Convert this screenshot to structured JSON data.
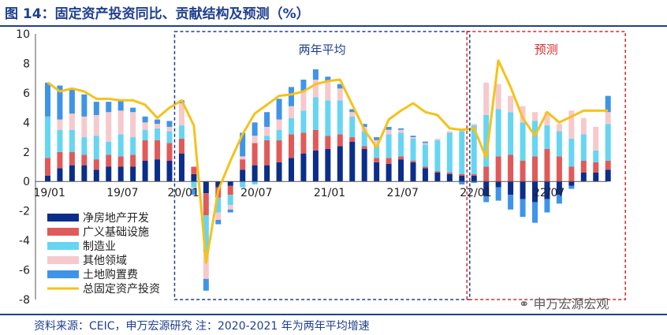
{
  "title": "图 14：固定资产投资同比、贡献结构及预测（%）",
  "footer": "资料来源：CEIC，申万宏源研究    注：2020-2021 年为两年平均增速",
  "watermark": "申万宏源宏观",
  "colors": {
    "title": "#1f3f8f",
    "real_estate": "#0b2e8a",
    "infrastructure": "#e05a5a",
    "manufacturing": "#66d5f2",
    "other": "#f6c9cc",
    "land": "#3f94e8",
    "total": "#f5c21b",
    "box_avg": "#1f3f8f",
    "box_forecast": "#d22c2c"
  },
  "chart_data": {
    "type": "bar",
    "stacked": true,
    "title": "图 14：固定资产投资同比、贡献结构及预测（%）",
    "ylim": [
      -8,
      10
    ],
    "yticks": [
      "10",
      "8",
      "6",
      "4",
      "2",
      "0",
      "-2",
      "-4",
      "-6",
      "-8"
    ],
    "xtick_labels": [
      {
        "label": "19/01",
        "index": 0
      },
      {
        "label": "19/07",
        "index": 6
      },
      {
        "label": "20/01",
        "index": 11
      },
      {
        "label": "20/07",
        "index": 17
      },
      {
        "label": "21/01",
        "index": 23
      },
      {
        "label": "21/07",
        "index": 29
      },
      {
        "label": "22/01",
        "index": 35
      },
      {
        "label": "22/07",
        "index": 41
      }
    ],
    "categories": [
      "19/01",
      "19/02",
      "19/03",
      "19/04",
      "19/05",
      "19/06",
      "19/07",
      "19/08",
      "19/09",
      "19/10",
      "19/11",
      "19/12",
      "20/02",
      "20/03",
      "20/04",
      "20/05",
      "20/06",
      "20/07",
      "20/08",
      "20/09",
      "20/10",
      "20/11",
      "20/12",
      "21/01",
      "21/02",
      "21/03",
      "21/04",
      "21/05",
      "21/06",
      "21/07",
      "21/08",
      "21/09",
      "21/10",
      "21/11",
      "21/12",
      "22/01",
      "22/02",
      "22/03",
      "22/04",
      "22/05",
      "22/06",
      "22/07",
      "22/08",
      "22/09",
      "22/10",
      "22/11",
      "22/12"
    ],
    "series": [
      {
        "name": "净房地产开发",
        "values": [
          0.4,
          0.9,
          1.1,
          1.1,
          0.8,
          1.0,
          1.0,
          1.0,
          1.4,
          1.5,
          1.4,
          1.9,
          0.5,
          -0.8,
          -0.4,
          -0.3,
          0.8,
          1.1,
          1.1,
          1.3,
          1.6,
          1.9,
          2.1,
          2.2,
          2.4,
          2.7,
          2.2,
          1.3,
          1.2,
          1.5,
          1.3,
          0.9,
          0.6,
          0.5,
          0.4,
          0.4,
          -1.0,
          -0.4,
          -0.9,
          -1.2,
          -1.4,
          -1.2,
          -0.9,
          -0.3,
          0.6,
          0.6,
          0.8
        ]
      },
      {
        "name": "广义基础设施",
        "values": [
          1.2,
          1.1,
          0.9,
          0.7,
          0.7,
          0.8,
          0.7,
          0.8,
          1.4,
          1.3,
          1.2,
          1.0,
          0.5,
          -1.5,
          -0.7,
          -0.6,
          0.7,
          1.5,
          1.7,
          1.5,
          1.6,
          1.4,
          1.4,
          0.9,
          0.8,
          0.3,
          0.2,
          0.3,
          0.4,
          0.2,
          0.1,
          0.1,
          0.1,
          0.1,
          0.1,
          0.1,
          1.0,
          1.7,
          1.8,
          1.4,
          1.7,
          2.2,
          1.7,
          1.0,
          0.8,
          0.7,
          0.6
        ]
      },
      {
        "name": "制造业",
        "values": [
          2.8,
          1.5,
          1.5,
          1.2,
          1.6,
          0.9,
          1.5,
          1.2,
          0.7,
          0.8,
          0.8,
          0.9,
          -0.4,
          -2.5,
          -1.0,
          -0.7,
          -0.4,
          -0.2,
          0.3,
          0.7,
          1.1,
          1.5,
          2.2,
          2.4,
          2.3,
          1.4,
          1.0,
          0.9,
          1.6,
          1.6,
          1.5,
          1.5,
          2.1,
          2.7,
          2.9,
          3.3,
          3.5,
          3.2,
          2.9,
          2.6,
          2.4,
          1.6,
          1.7,
          1.9,
          1.8,
          0.8,
          2.5
        ]
      },
      {
        "name": "其他领域",
        "values": [
          0,
          0.7,
          1.1,
          1.4,
          1.4,
          2.0,
          1.6,
          1.7,
          0.5,
          0.3,
          0.3,
          1.5,
          -0.1,
          -1.8,
          -0.5,
          -0.3,
          0.2,
          0.5,
          0.6,
          0.7,
          0.8,
          1.3,
          1.2,
          1.3,
          0.8,
          0.3,
          0.3,
          0.3,
          0.3,
          0.2,
          0.1,
          0.1,
          0.1,
          0.1,
          0.2,
          0.1,
          2.2,
          1.7,
          1.1,
          1.1,
          0.6,
          0.9,
          0.5,
          1.9,
          1.1,
          1.6,
          0.8
        ]
      },
      {
        "name": "土地购置费",
        "values": [
          2.3,
          2.3,
          1.7,
          1.5,
          0.9,
          0.7,
          0.7,
          0.3,
          0.4,
          0.3,
          0.4,
          0.2,
          -0.4,
          -0.8,
          -0.3,
          -0.2,
          1.6,
          0.9,
          1.0,
          1.4,
          1.3,
          0.8,
          0.7,
          0.3,
          0.3,
          0.2,
          0.2,
          0.2,
          0.2,
          0.1,
          0.1,
          0.1,
          0,
          0,
          -0.2,
          -0.1,
          -0.4,
          -0.9,
          -1.0,
          -1.2,
          -1.4,
          -0.9,
          -0.6,
          -0.2,
          0,
          0,
          1.1
        ]
      },
      {
        "name": "总固定资产投资",
        "type": "line",
        "values": [
          6.7,
          6.1,
          6.3,
          6.1,
          5.6,
          5.6,
          5.5,
          5.5,
          5.2,
          4.3,
          5.0,
          5.5,
          3.8,
          -5.5,
          -0.6,
          1.4,
          3.2,
          4.6,
          5.2,
          5.8,
          5.9,
          6.1,
          6.6,
          6.8,
          6.9,
          5.2,
          3.5,
          2.3,
          4.2,
          4.8,
          5.3,
          4.7,
          4.5,
          3.6,
          3.5,
          3.6,
          1.6,
          8.2,
          6.4,
          4.3,
          3.1,
          4.7,
          4.0,
          4.4,
          4.8,
          4.8,
          4.8
        ]
      }
    ],
    "annotations": [
      {
        "text": "两年平均",
        "from_index": 11,
        "to_index": 34
      },
      {
        "text": "预测",
        "from_index": 35,
        "to_index": 46
      }
    ],
    "legend_position": "bottom-left"
  }
}
